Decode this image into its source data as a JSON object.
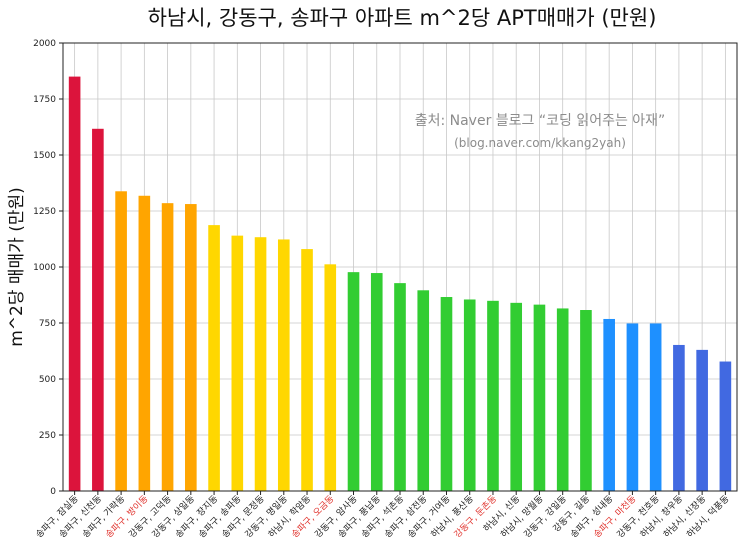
{
  "chart_data": {
    "type": "bar",
    "title": "하남시, 강동구, 송파구 아파트 m^2당 APT매매가 (만원)",
    "ylabel": "m^2당 매매가 (만원)",
    "xlabel": "",
    "ylim": [
      0,
      2000
    ],
    "yticks": [
      0,
      250,
      500,
      750,
      1000,
      1250,
      1500,
      1750,
      2000
    ],
    "grid": true,
    "annotation": [
      "출처: Naver 블로그 “코딩 읽어주는 아재”",
      "(blog.naver.com/kkang2yah)"
    ],
    "categories": [
      "송파구, 잠실동",
      "송파구, 신천동",
      "송파구, 가락동",
      "송파구, 방이동",
      "강동구, 고덕동",
      "강동구, 상일동",
      "송파구, 장지동",
      "송파구, 송파동",
      "송파구, 문정동",
      "강동구, 명일동",
      "하남시, 학암동",
      "송파구, 오금동",
      "강동구, 암사동",
      "송파구, 풍납동",
      "송파구, 석촌동",
      "송파구, 삼전동",
      "송파구, 거여동",
      "하남시, 풍산동",
      "강동구, 둔촌동",
      "하남시, 신동",
      "하남시, 망월동",
      "강동구, 강일동",
      "강동구, 길동",
      "송파구, 성내동",
      "송파구, 마천동",
      "강동구, 천호동",
      "하남시, 창우동",
      "하남시, 신장동",
      "하남시, 덕풍동"
    ],
    "values": [
      1850,
      1617,
      1338,
      1318,
      1285,
      1281,
      1187,
      1140,
      1133,
      1123,
      1080,
      1012,
      977,
      973,
      928,
      896,
      866,
      855,
      849,
      840,
      832,
      815,
      808,
      768,
      748,
      748,
      652,
      630,
      578
    ],
    "bar_colors": [
      "#dc143c",
      "#dc143c",
      "#ffa500",
      "#ffa500",
      "#ffa500",
      "#ffa500",
      "#ffd700",
      "#ffd700",
      "#ffd700",
      "#ffd700",
      "#ffd700",
      "#ffd700",
      "#32cd32",
      "#32cd32",
      "#32cd32",
      "#32cd32",
      "#32cd32",
      "#32cd32",
      "#32cd32",
      "#32cd32",
      "#32cd32",
      "#32cd32",
      "#32cd32",
      "#1e90ff",
      "#1e90ff",
      "#1e90ff",
      "#4169e1",
      "#4169e1",
      "#4169e1"
    ],
    "highlighted_labels": [
      "송파구, 방이동",
      "송파구, 오금동",
      "강동구, 둔촌동",
      "송파구, 마천동"
    ],
    "highlight_color": "#e0312b"
  }
}
